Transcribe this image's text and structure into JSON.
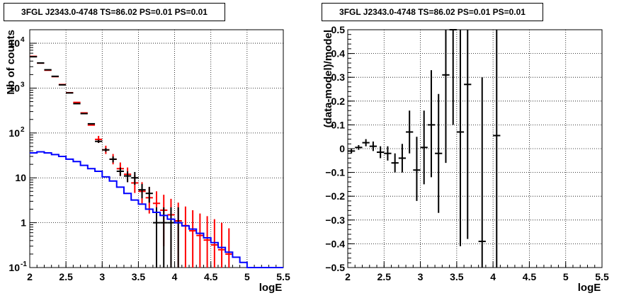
{
  "chart_data": [
    {
      "type": "line",
      "title": "3FGL J2343.0-4748 TS=86.02 PS=0.01 PS=0.01",
      "xlabel": "logE",
      "ylabel": "Nb of counts",
      "xlim": [
        2,
        5.5
      ],
      "ylim": [
        0.1,
        20000
      ],
      "yscale": "log",
      "grid": true,
      "x_ticks": [
        "2",
        "2.5",
        "3",
        "3.5",
        "4",
        "4.5",
        "5",
        "5.5"
      ],
      "y_ticks": [
        {
          "value": 0.1,
          "label": "10",
          "exp": "-1"
        },
        {
          "value": 1,
          "label": "1",
          "exp": ""
        },
        {
          "value": 10,
          "label": "10",
          "exp": ""
        },
        {
          "value": 100,
          "label": "10",
          "exp": "2"
        },
        {
          "value": 1000,
          "label": "10",
          "exp": "3"
        },
        {
          "value": 10000,
          "label": "10",
          "exp": "4"
        }
      ],
      "series": [
        {
          "color": "#ff0000",
          "style": "errorbar",
          "x": [
            2.05,
            2.15,
            2.25,
            2.35,
            2.45,
            2.55,
            2.65,
            2.75,
            2.85,
            2.95,
            3.05,
            3.15,
            3.25,
            3.35,
            3.45,
            3.55,
            3.65,
            3.75,
            3.85,
            3.95,
            4.05,
            4.15,
            4.25,
            4.35,
            4.45,
            4.55,
            4.65,
            4.75
          ],
          "y": [
            5100,
            3600,
            2500,
            1800,
            1200,
            790,
            480,
            280,
            150,
            72,
            42,
            26,
            16,
            12,
            7.7,
            5.0,
            3.6,
            2.7,
            1.9,
            1.5,
            1.1,
            0.86,
            0.66,
            0.52,
            0.41,
            0.32,
            0.25,
            0.2
          ],
          "ylo": [
            5100,
            3600,
            2500,
            1800,
            1200,
            790,
            480,
            280,
            150,
            60,
            34,
            20,
            11,
            8,
            4.6,
            2.7,
            1.6,
            0.9,
            0.3,
            0.1,
            0.1,
            0.1,
            0.1,
            0.1,
            0.1,
            0.1,
            0.1,
            0.1
          ],
          "yhi": [
            5100,
            3600,
            2500,
            1800,
            1200,
            790,
            480,
            280,
            150,
            86,
            52,
            34,
            22,
            17,
            11.5,
            8.0,
            6.2,
            5.0,
            4.2,
            3.4,
            2.8,
            2.3,
            1.9,
            1.6,
            1.4,
            1.2,
            1.0,
            0.75
          ]
        },
        {
          "color": "#000000",
          "style": "errorbar",
          "x": [
            2.05,
            2.15,
            2.25,
            2.35,
            2.45,
            2.55,
            2.65,
            2.75,
            2.85,
            2.95,
            3.05,
            3.15,
            3.25,
            3.35,
            3.45,
            3.55,
            3.65,
            3.75,
            3.85,
            3.95,
            4.05
          ],
          "y": [
            5000,
            3630,
            2560,
            1830,
            1180,
            780,
            450,
            270,
            160,
            65,
            42,
            26,
            14,
            11,
            10,
            5.4,
            4.5,
            1,
            1,
            1,
            1
          ],
          "ylo": [
            5000,
            3630,
            2560,
            1830,
            1180,
            780,
            450,
            270,
            160,
            60,
            38,
            22,
            11,
            8,
            7,
            3.5,
            2.8,
            0.1,
            0.1,
            0.1,
            0.1
          ],
          "yhi": [
            5000,
            3630,
            2560,
            1830,
            1180,
            780,
            450,
            270,
            160,
            70,
            46,
            30,
            17,
            14,
            13.5,
            7.3,
            6.3,
            2.2,
            2.2,
            2.2,
            2.2
          ]
        },
        {
          "color": "#0000ff",
          "style": "step",
          "edges": [
            2.0,
            2.1,
            2.2,
            2.3,
            2.4,
            2.5,
            2.6,
            2.7,
            2.8,
            2.9,
            3.0,
            3.1,
            3.2,
            3.3,
            3.4,
            3.5,
            3.6,
            3.7,
            3.8,
            3.9,
            4.0,
            4.1,
            4.2,
            4.3,
            4.4,
            4.5,
            4.6,
            4.7,
            4.8,
            4.9,
            5.0,
            5.1,
            5.2,
            5.3,
            5.4,
            5.5
          ],
          "values": [
            36,
            38,
            36,
            33,
            30,
            26,
            23,
            19,
            16,
            14,
            10.5,
            8.5,
            6.2,
            4.5,
            3.2,
            2.6,
            2.0,
            1.7,
            1.45,
            1.2,
            1.0,
            0.85,
            0.72,
            0.58,
            0.46,
            0.36,
            0.28,
            0.22,
            0.17,
            0.13,
            0.1,
            0.1,
            0.1,
            0.1,
            0.1
          ]
        }
      ]
    },
    {
      "type": "scatter",
      "title": "3FGL J2343.0-4748 TS=86.02 PS=0.01 PS=0.01",
      "xlabel": "logE",
      "ylabel": "(data-model)/model",
      "xlim": [
        2,
        5.5
      ],
      "ylim": [
        -0.5,
        0.5
      ],
      "grid": true,
      "x_ticks": [
        "2",
        "2.5",
        "3",
        "3.5",
        "4",
        "4.5",
        "5",
        "5.5"
      ],
      "y_ticks": [
        "−0.5",
        "−0.4",
        "−0.3",
        "−0.2",
        "−0.1",
        "0",
        "0.1",
        "0.2",
        "0.3",
        "0.4",
        "0.5"
      ],
      "series": [
        {
          "color": "#000000",
          "style": "errorbar",
          "x": [
            2.05,
            2.15,
            2.25,
            2.35,
            2.45,
            2.55,
            2.65,
            2.75,
            2.85,
            2.95,
            3.05,
            3.15,
            3.25,
            3.35,
            3.45,
            3.55,
            3.65,
            3.85,
            4.05
          ],
          "y": [
            -0.01,
            0.005,
            0.025,
            0.01,
            -0.015,
            -0.02,
            -0.06,
            -0.04,
            0.07,
            -0.09,
            0.005,
            0.1,
            -0.02,
            0.31,
            0.5,
            0.07,
            0.27,
            -0.39,
            0.055
          ],
          "ylo": [
            -0.02,
            -0.005,
            0.01,
            -0.01,
            -0.04,
            -0.05,
            -0.1,
            -0.1,
            -0.02,
            -0.22,
            -0.15,
            -0.12,
            -0.27,
            -0.06,
            0.1,
            -0.41,
            -0.38,
            -0.5,
            -0.5
          ],
          "yhi": [
            0.0,
            0.015,
            0.04,
            0.03,
            0.01,
            0.01,
            -0.02,
            0.02,
            0.16,
            0.05,
            0.16,
            0.33,
            0.23,
            0.5,
            0.5,
            0.5,
            0.5,
            0.3,
            0.5
          ]
        }
      ]
    }
  ]
}
